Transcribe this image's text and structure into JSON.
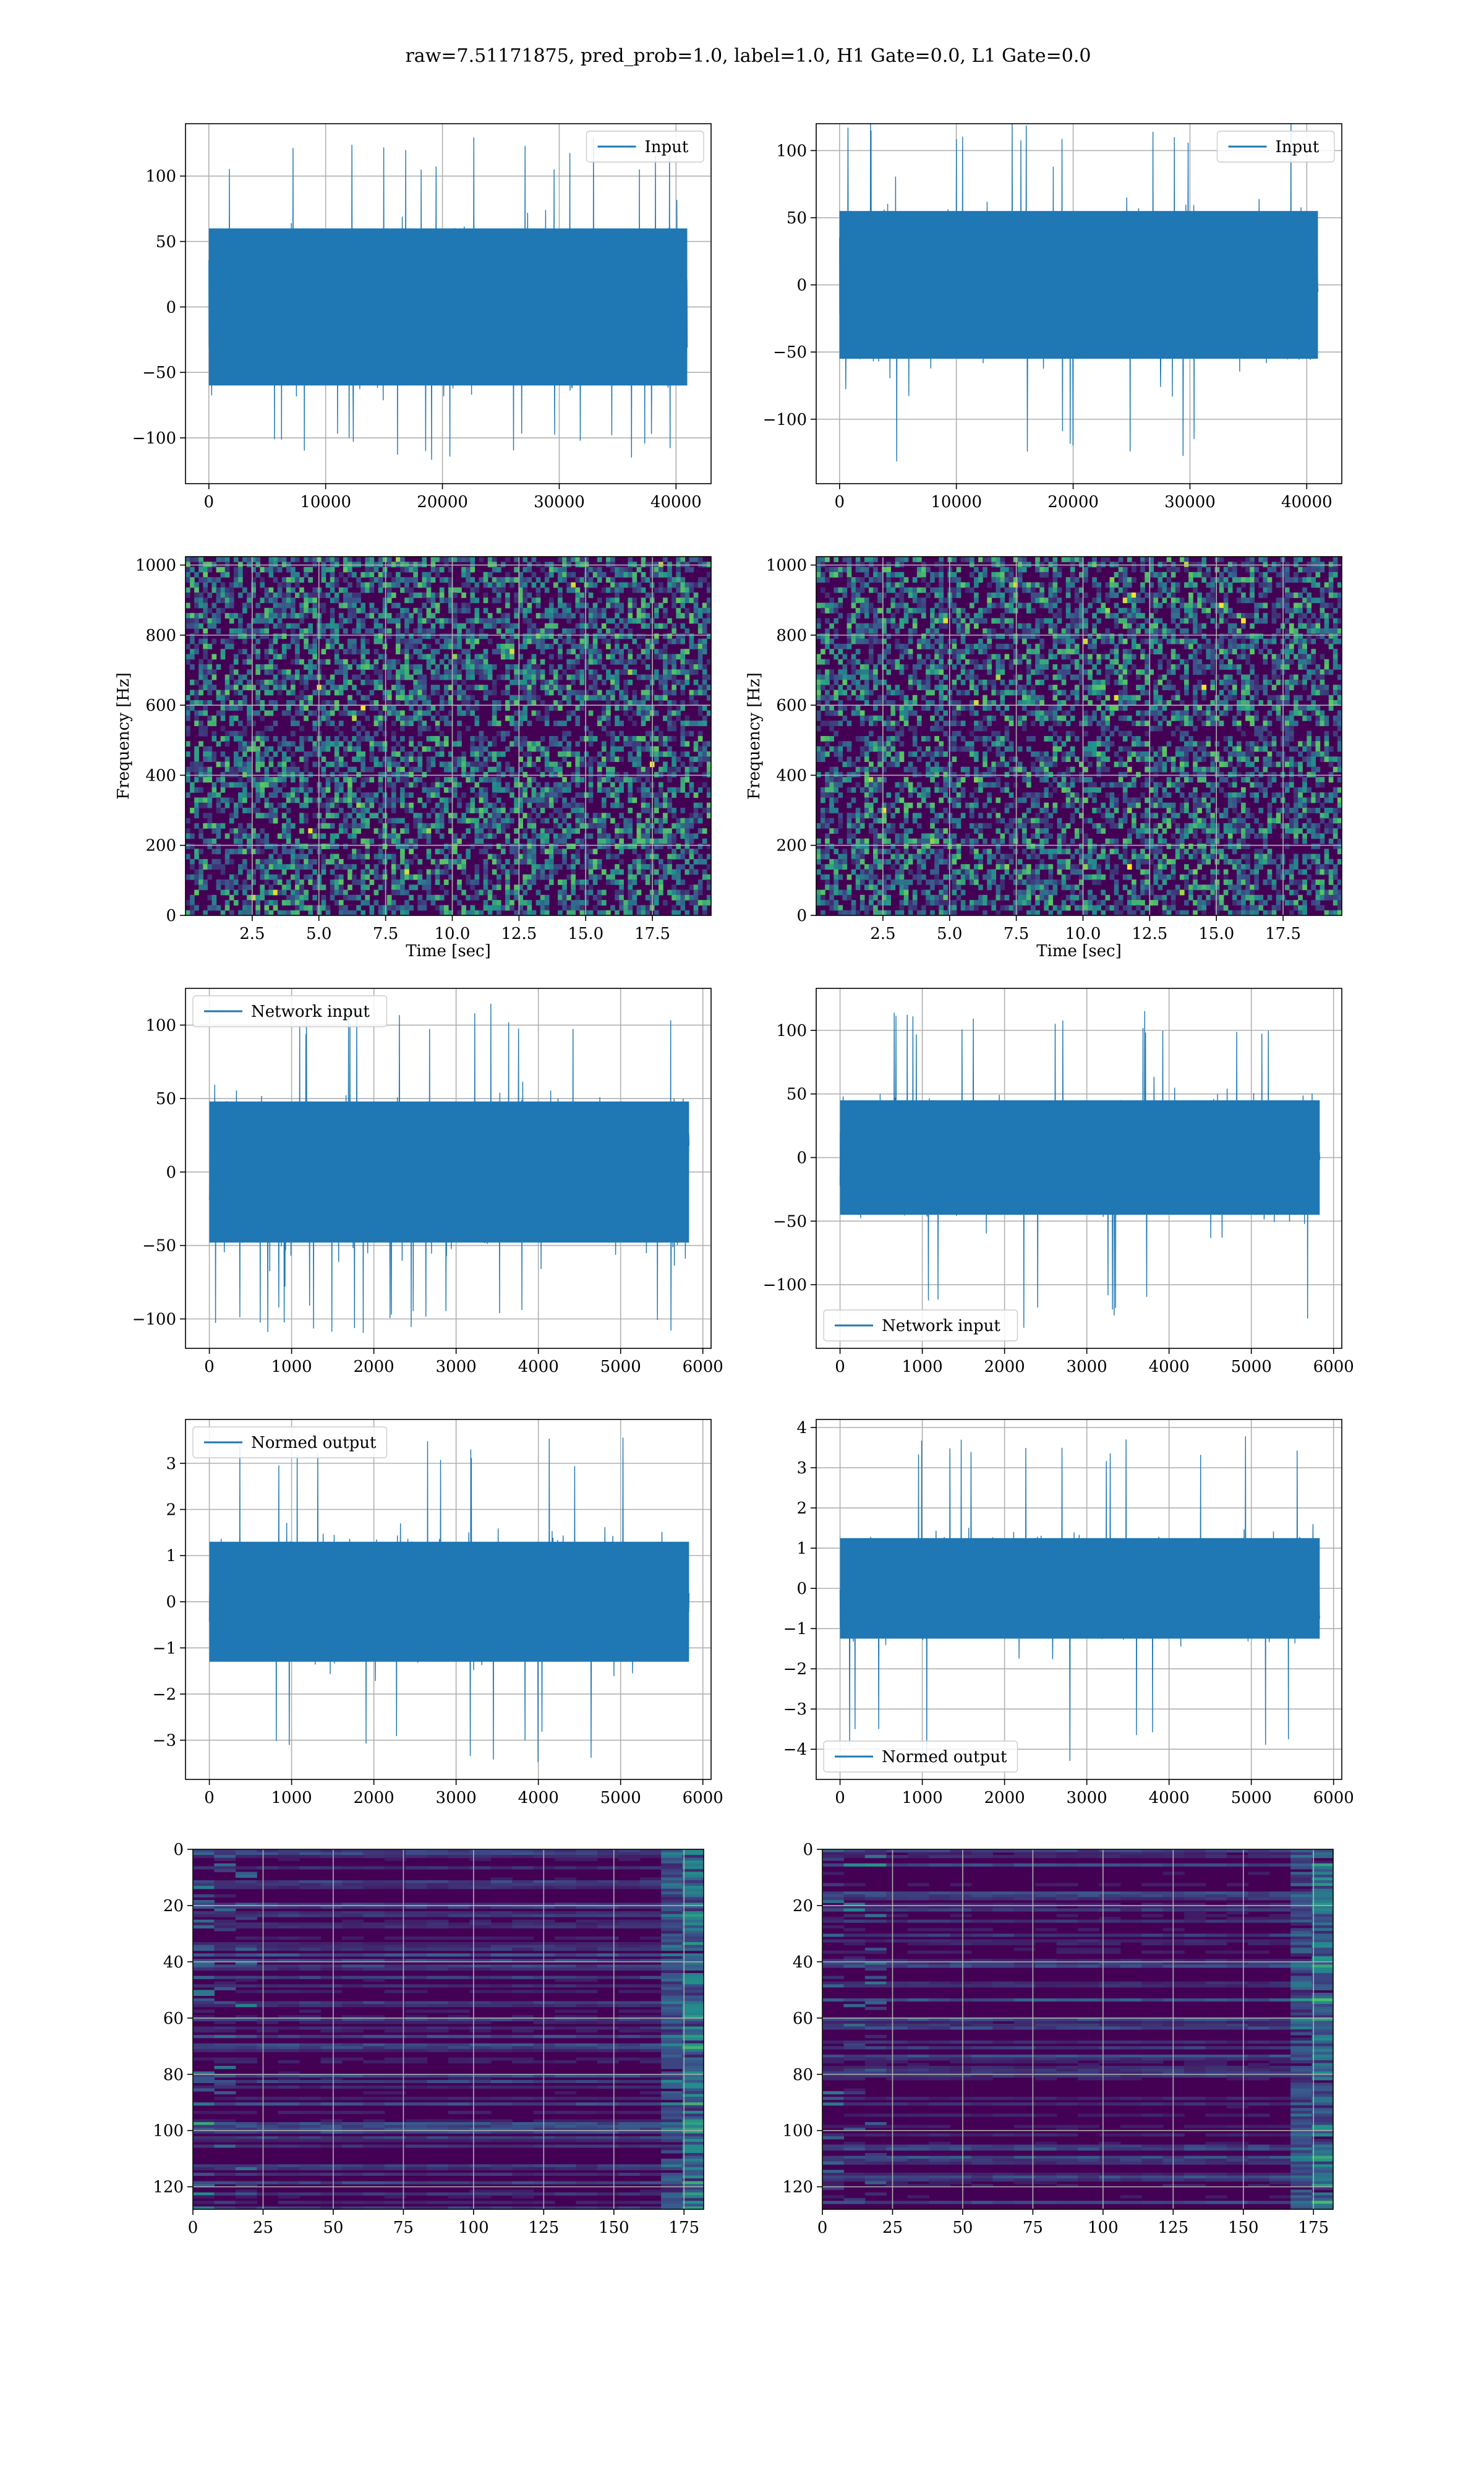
{
  "suptitle": "raw=7.51171875, pred_prob=1.0, label=1.0, H1 Gate=0.0, L1 Gate=0.0",
  "colors": {
    "line": "#1f77b4",
    "grid": "#b0b0b0",
    "viridis": [
      "#440154",
      "#3b528b",
      "#21918c",
      "#5ec962",
      "#fde725"
    ]
  },
  "chart_data": [
    {
      "type": "line",
      "legend": "Input",
      "legend_loc": "upper right",
      "xlim": [
        -2000,
        43000
      ],
      "ylim": [
        -135,
        140
      ],
      "xticks": [
        0,
        10000,
        20000,
        30000,
        40000
      ],
      "xtick_labels": [
        "0",
        "10000",
        "20000",
        "30000",
        "40000"
      ],
      "yticks": [
        -100,
        -50,
        0,
        50,
        100
      ],
      "ytick_labels": [
        "−100",
        "−50",
        "0",
        "50",
        "100"
      ],
      "signal": {
        "n": 40960,
        "core_amplitude": 60,
        "spike_max": 130,
        "spike_min": -118
      },
      "grid": true
    },
    {
      "type": "line",
      "legend": "Input",
      "legend_loc": "upper right",
      "xlim": [
        -2000,
        43000
      ],
      "ylim": [
        -148,
        120
      ],
      "xticks": [
        0,
        10000,
        20000,
        30000,
        40000
      ],
      "xtick_labels": [
        "0",
        "10000",
        "20000",
        "30000",
        "40000"
      ],
      "yticks": [
        -100,
        -50,
        0,
        50,
        100
      ],
      "ytick_labels": [
        "−100",
        "−50",
        "0",
        "50",
        "100"
      ],
      "signal": {
        "n": 40960,
        "core_amplitude": 55,
        "spike_max": 125,
        "spike_min": -135
      },
      "grid": true
    },
    {
      "type": "heatmap",
      "xlabel": "Time [sec]",
      "ylabel": "Frequency [Hz]",
      "xlim": [
        0,
        19.7
      ],
      "ylim": [
        0,
        1024
      ],
      "xticks": [
        2.5,
        5.0,
        7.5,
        10.0,
        12.5,
        15.0,
        17.5
      ],
      "xtick_labels": [
        "2.5",
        "5.0",
        "7.5",
        "10.0",
        "12.5",
        "15.0",
        "17.5"
      ],
      "yticks": [
        0,
        200,
        400,
        600,
        800,
        1000
      ],
      "ytick_labels": [
        "0",
        "200",
        "400",
        "600",
        "800",
        "1000"
      ],
      "colormap": "viridis",
      "grid": true
    },
    {
      "type": "heatmap",
      "xlabel": "Time [sec]",
      "ylabel": "Frequency [Hz]",
      "xlim": [
        0,
        19.7
      ],
      "ylim": [
        0,
        1024
      ],
      "xticks": [
        2.5,
        5.0,
        7.5,
        10.0,
        12.5,
        15.0,
        17.5
      ],
      "xtick_labels": [
        "2.5",
        "5.0",
        "7.5",
        "10.0",
        "12.5",
        "15.0",
        "17.5"
      ],
      "yticks": [
        0,
        200,
        400,
        600,
        800,
        1000
      ],
      "ytick_labels": [
        "0",
        "200",
        "400",
        "600",
        "800",
        "1000"
      ],
      "colormap": "viridis",
      "grid": true
    },
    {
      "type": "line",
      "legend": "Network input",
      "legend_loc": "upper left",
      "xlim": [
        -290,
        6100
      ],
      "ylim": [
        -120,
        125
      ],
      "xticks": [
        0,
        1000,
        2000,
        3000,
        4000,
        5000,
        6000
      ],
      "xtick_labels": [
        "0",
        "1000",
        "2000",
        "3000",
        "4000",
        "5000",
        "6000"
      ],
      "yticks": [
        -100,
        -50,
        0,
        50,
        100
      ],
      "ytick_labels": [
        "−100",
        "−50",
        "0",
        "50",
        "100"
      ],
      "signal": {
        "n": 5832,
        "core_amplitude": 48,
        "spike_max": 115,
        "spike_min": -110
      },
      "grid": true
    },
    {
      "type": "line",
      "legend": "Network input",
      "legend_loc": "lower left",
      "xlim": [
        -290,
        6100
      ],
      "ylim": [
        -150,
        133
      ],
      "xticks": [
        0,
        1000,
        2000,
        3000,
        4000,
        5000,
        6000
      ],
      "xtick_labels": [
        "0",
        "1000",
        "2000",
        "3000",
        "4000",
        "5000",
        "6000"
      ],
      "yticks": [
        -100,
        -50,
        0,
        50,
        100
      ],
      "ytick_labels": [
        "−100",
        "−50",
        "0",
        "50",
        "100"
      ],
      "signal": {
        "n": 5832,
        "core_amplitude": 45,
        "spike_max": 120,
        "spike_min": -135
      },
      "grid": true
    },
    {
      "type": "line",
      "legend": "Normed output",
      "legend_loc": "upper left",
      "xlim": [
        -290,
        6100
      ],
      "ylim": [
        -3.85,
        3.95
      ],
      "xticks": [
        0,
        1000,
        2000,
        3000,
        4000,
        5000,
        6000
      ],
      "xtick_labels": [
        "0",
        "1000",
        "2000",
        "3000",
        "4000",
        "5000",
        "6000"
      ],
      "yticks": [
        -3,
        -2,
        -1,
        0,
        1,
        2,
        3
      ],
      "ytick_labels": [
        "−3",
        "−2",
        "−1",
        "0",
        "1",
        "2",
        "3"
      ],
      "signal": {
        "n": 5832,
        "core_amplitude": 1.3,
        "spike_max": 3.6,
        "spike_min": -3.5
      },
      "grid": true
    },
    {
      "type": "line",
      "legend": "Normed output",
      "legend_loc": "lower left",
      "xlim": [
        -290,
        6100
      ],
      "ylim": [
        -4.75,
        4.2
      ],
      "xticks": [
        0,
        1000,
        2000,
        3000,
        4000,
        5000,
        6000
      ],
      "xtick_labels": [
        "0",
        "1000",
        "2000",
        "3000",
        "4000",
        "5000",
        "6000"
      ],
      "yticks": [
        -4,
        -3,
        -2,
        -1,
        0,
        1,
        2,
        3,
        4
      ],
      "ytick_labels": [
        "−4",
        "−3",
        "−2",
        "−1",
        "0",
        "1",
        "2",
        "3",
        "4"
      ],
      "signal": {
        "n": 5832,
        "core_amplitude": 1.25,
        "spike_max": 3.9,
        "spike_min": -4.3
      },
      "grid": true
    },
    {
      "type": "heatmap",
      "xlim": [
        0,
        182
      ],
      "ylim": [
        128,
        0
      ],
      "xticks": [
        0,
        25,
        50,
        75,
        100,
        125,
        150,
        175
      ],
      "xtick_labels": [
        "0",
        "25",
        "50",
        "75",
        "100",
        "125",
        "150",
        "175"
      ],
      "yticks": [
        0,
        20,
        40,
        60,
        80,
        100,
        120
      ],
      "ytick_labels": [
        "0",
        "20",
        "40",
        "60",
        "80",
        "100",
        "120"
      ],
      "colormap": "viridis",
      "grid": true
    },
    {
      "type": "heatmap",
      "xlim": [
        0,
        182
      ],
      "ylim": [
        128,
        0
      ],
      "xticks": [
        0,
        25,
        50,
        75,
        100,
        125,
        150,
        175
      ],
      "xtick_labels": [
        "0",
        "25",
        "50",
        "75",
        "100",
        "125",
        "150",
        "175"
      ],
      "yticks": [
        0,
        20,
        40,
        60,
        80,
        100,
        120
      ],
      "ytick_labels": [
        "0",
        "20",
        "40",
        "60",
        "80",
        "100",
        "120"
      ],
      "colormap": "viridis",
      "grid": true
    }
  ]
}
